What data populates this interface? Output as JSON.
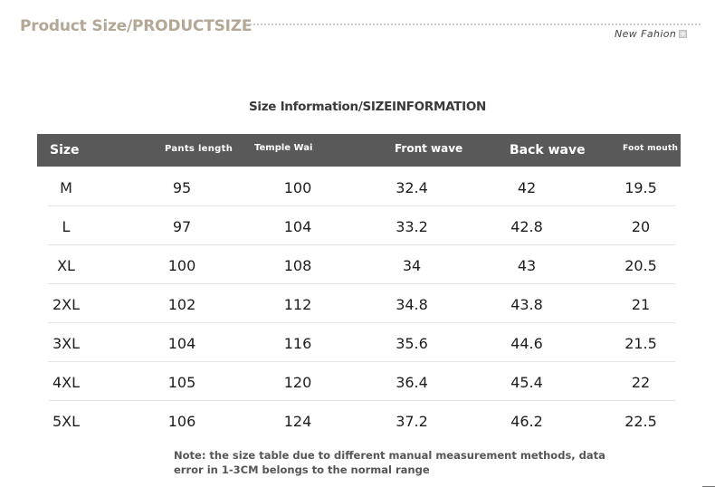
{
  "header": {
    "title": "Product Size/PRODUCTSIZE",
    "tag": "New Fahion",
    "tag_icon": "plus-square-icon"
  },
  "section_title": "Size Information/SIZEINFORMATION",
  "table": {
    "columns": [
      "Size",
      "Pants length",
      "Temple Wai",
      "Front wave",
      "Back wave",
      "Foot mouth"
    ],
    "rows": [
      [
        "M",
        "95",
        "100",
        "32.4",
        "42",
        "19.5"
      ],
      [
        "L",
        "97",
        "104",
        "33.2",
        "42.8",
        "20"
      ],
      [
        "XL",
        "100",
        "108",
        "34",
        "43",
        "20.5"
      ],
      [
        "2XL",
        "102",
        "112",
        "34.8",
        "43.8",
        "21"
      ],
      [
        "3XL",
        "104",
        "116",
        "35.6",
        "44.6",
        "21.5"
      ],
      [
        "4XL",
        "105",
        "120",
        "36.4",
        "45.4",
        "22"
      ],
      [
        "5XL",
        "106",
        "124",
        "37.2",
        "46.2",
        "22.5"
      ]
    ]
  },
  "note": "Note: the size table due to different manual measurement methods, data error in 1-3CM belongs to the normal range",
  "colors": {
    "title": "#b3a796",
    "header_bg": "#595959",
    "header_text": "#ffffff"
  }
}
